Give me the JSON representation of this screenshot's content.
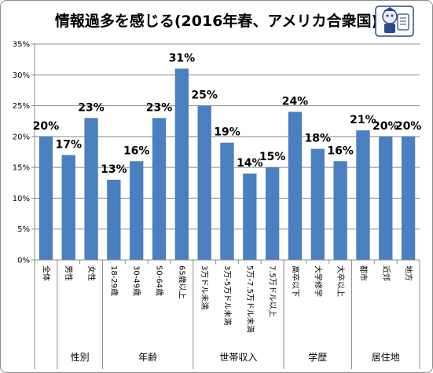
{
  "chart_data": {
    "type": "bar",
    "title": "情報過多を感じる(2016年春、アメリカ合衆国)",
    "ylim": [
      0,
      35
    ],
    "yticks": [
      "0%",
      "5%",
      "10%",
      "15%",
      "20%",
      "25%",
      "30%",
      "35%"
    ],
    "grid": true,
    "legend": "none",
    "bar_color": "#4a7fc0",
    "categories": [
      "全体",
      "男性",
      "女性",
      "18-29歳",
      "30-49歳",
      "50-64歳",
      "65歳以上",
      "3万ドル未満",
      "3万-5万ドル未満",
      "5万-7.5万ドル未満",
      "7.5万ドル以上",
      "高卒以下",
      "大学修学",
      "大卒以上",
      "都市",
      "近郊",
      "地方"
    ],
    "values": [
      20,
      17,
      23,
      13,
      16,
      23,
      31,
      25,
      19,
      14,
      15,
      24,
      18,
      16,
      21,
      20,
      20
    ],
    "value_labels": [
      "20%",
      "17%",
      "23%",
      "13%",
      "16%",
      "23%",
      "31%",
      "25%",
      "19%",
      "14%",
      "15%",
      "24%",
      "18%",
      "16%",
      "21%",
      "20%",
      "20%"
    ],
    "groups": [
      {
        "label": "性別",
        "start": 1,
        "end": 2
      },
      {
        "label": "年齢",
        "start": 3,
        "end": 6
      },
      {
        "label": "世帯収入",
        "start": 7,
        "end": 10
      },
      {
        "label": "学歴",
        "start": 11,
        "end": 13
      },
      {
        "label": "居住地",
        "start": 14,
        "end": 16
      }
    ]
  }
}
